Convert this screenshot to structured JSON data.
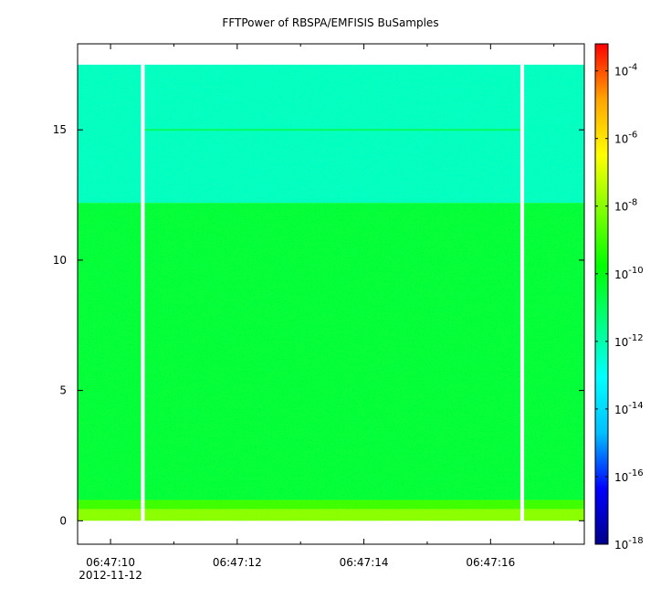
{
  "chart_data": {
    "type": "heatmap",
    "title": "FFTPower of RBSPA/EMFISIS  BuSamples",
    "xlabel": "",
    "ylabel": "",
    "date_label": "2012-11-12",
    "x_ticks": [
      "06:47:10",
      "06:47:12",
      "06:47:14",
      "06:47:16"
    ],
    "x_tick_seconds": [
      10,
      12,
      14,
      16
    ],
    "x_minor_seconds": [
      11,
      13,
      15,
      17
    ],
    "xlim_seconds": [
      9.48,
      17.48
    ],
    "y_ticks": [
      0,
      5,
      10,
      15
    ],
    "ylim": [
      -0.9,
      18.3
    ],
    "data_freq_range": [
      0,
      17.5
    ],
    "data_gaps_seconds": [
      [
        10.48,
        10.54
      ],
      [
        16.47,
        16.53
      ]
    ],
    "colorbar": {
      "scale": "log",
      "range_exponent": [
        -18,
        -3.2
      ],
      "tick_exponents": [
        -18,
        -16,
        -14,
        -12,
        -10,
        -8,
        -6,
        -4
      ],
      "tick_labels": [
        "10-18",
        "10-16",
        "10-14",
        "10-12",
        "10-10",
        "10-8",
        "10-6",
        "10-4"
      ],
      "colors": [
        "#00008b",
        "#0000ff",
        "#00bfff",
        "#00ffff",
        "#00ff7f",
        "#00ff00",
        "#7fff00",
        "#ffff00",
        "#ffa500",
        "#ff0000"
      ]
    },
    "bands": [
      {
        "freq": [
          0,
          0.45
        ],
        "log_power": -8.0
      },
      {
        "freq": [
          0.45,
          0.8
        ],
        "log_power": -9.0
      },
      {
        "freq": [
          0.8,
          12.2
        ],
        "log_power": -10.5
      },
      {
        "freq": [
          12.2,
          17.5
        ],
        "log_power": -12.3
      }
    ],
    "line_feature": {
      "freq": 15.0,
      "log_power": -11.0
    }
  }
}
